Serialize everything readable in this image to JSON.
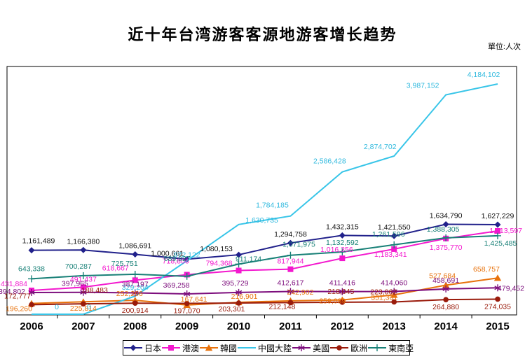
{
  "title": "近十年台湾游客客源地游客增长趋势",
  "unit_label": "單位:人次",
  "chart_data": {
    "type": "line",
    "title": "近十年台湾游客客源地游客增长趋势",
    "unit": "單位:人次",
    "categories": [
      "2006",
      "2007",
      "2008",
      "2009",
      "2010",
      "2011",
      "2012",
      "2013",
      "2014",
      "2015"
    ],
    "ylim": [
      0,
      4500000
    ],
    "grid": false,
    "legend_position": "bottom",
    "series": [
      {
        "name": "日本",
        "color": "#21218B",
        "label_color": "#111111",
        "marker": "diamond",
        "label_dy": -9,
        "values": [
          1161489,
          1166380,
          1086691,
          1000661,
          1080153,
          1294758,
          1432315,
          1421550,
          1634790,
          1627229
        ],
        "overrides": {
          "0": [
            10,
            -10
          ],
          "3": [
            -28,
            -5
          ],
          "4": [
            -32,
            -5
          ]
        }
      },
      {
        "name": "港澳",
        "color": "#F318CE",
        "label_color": "#F318CE",
        "marker": "square",
        "label_dy": -8,
        "values": [
          431884,
          491437,
          618667,
          718806,
          794368,
          817944,
          1016356,
          1183341,
          1375770,
          1513597
        ],
        "overrides": {
          "0": [
            -25,
            -6
          ],
          "2": [
            -28,
            -14
          ],
          "3": [
            -16,
            -16
          ],
          "4": [
            -28,
            -7
          ],
          "6": [
            -8,
            -9
          ],
          "7": [
            -5,
            11
          ],
          "8": [
            0,
            16
          ],
          "9": [
            35,
            3,
            "end"
          ]
        }
      },
      {
        "name": "韓國",
        "color": "#E8720C",
        "label_color": "#E8720C",
        "marker": "triangle",
        "label_dy": 13,
        "values": [
          196260,
          225814,
          252266,
          167641,
          216901,
          242902,
          259089,
          351301,
          527684,
          658757
        ],
        "overrides": {
          "0": [
            -18,
            11
          ],
          "2": [
            -8,
            -6
          ],
          "3": [
            10,
            -5
          ],
          "4": [
            8,
            -5
          ],
          "5": [
            14,
            -9
          ],
          "6": [
            -14,
            5
          ],
          "7": [
            -14,
            7
          ],
          "8": [
            -5,
            -10
          ],
          "9": [
            -16,
            -9
          ]
        }
      },
      {
        "name": "中國大陸",
        "color": "#38C5E8",
        "label_color": "#2FB9DE",
        "marker": "none",
        "label_dy": -9,
        "values": [
          0,
          0,
          329204,
          972122,
          1630735,
          1784185,
          2586428,
          2874702,
          3987152,
          4184102
        ],
        "overrides": {
          "0": [
            36,
            -7
          ],
          "1": [
            8,
            -7
          ],
          "3": [
            0,
            -5
          ],
          "4": [
            33,
            -3
          ],
          "5": [
            -26,
            -12
          ],
          "6": [
            -18,
            -12
          ],
          "7": [
            -20,
            -10
          ],
          "8": [
            -33,
            -10
          ],
          "9": [
            -20,
            -10
          ]
        }
      },
      {
        "name": "美國",
        "color": "#7D0E7D",
        "label_color": "#7D0E7D",
        "marker": "asterisk",
        "label_dy": -9,
        "values": [
          394802,
          397965,
          387197,
          369258,
          395729,
          412617,
          411416,
          414060,
          458691,
          479452
        ],
        "overrides": {
          "0": [
            -28,
            2
          ],
          "1": [
            -12,
            -9
          ],
          "3": [
            -15,
            -9
          ],
          "4": [
            -5,
            -10
          ],
          "9": [
            38,
            4,
            "end"
          ]
        }
      },
      {
        "name": "歐洲",
        "color": "#9A1B0B",
        "label_color": "#9A1B0B",
        "marker": "circle",
        "label_dy": 14,
        "values": [
          172777,
          188483,
          200914,
          197070,
          203301,
          212148,
          218045,
          223062,
          264880,
          274035
        ],
        "overrides": {
          "0": [
            -20,
            -9
          ],
          "1": [
            16,
            -16
          ],
          "4": [
            -10,
            12
          ],
          "5": [
            -12,
            9
          ],
          "6": [
            -2,
            -12
          ],
          "7": [
            -15,
            -11
          ]
        }
      },
      {
        "name": "東南亞",
        "color": "#188077",
        "label_color": "#188077",
        "marker": "plus",
        "label_dy": -8,
        "values": [
          643338,
          700287,
          725751,
          689027,
          911174,
          1071975,
          1132592,
          1261596,
          1388305,
          1425485
        ],
        "overrides": {
          "0": [
            0,
            -11
          ],
          "1": [
            -7,
            -10
          ],
          "2": [
            -15,
            -12
          ],
          "3": [
            -14,
            -22
          ],
          "4": [
            14,
            -4
          ],
          "5": [
            12,
            -12
          ],
          "6": [
            0,
            -10
          ],
          "7": [
            -8,
            -12
          ],
          "8": [
            -4,
            -9
          ],
          "9": [
            4,
            14
          ]
        }
      }
    ]
  }
}
